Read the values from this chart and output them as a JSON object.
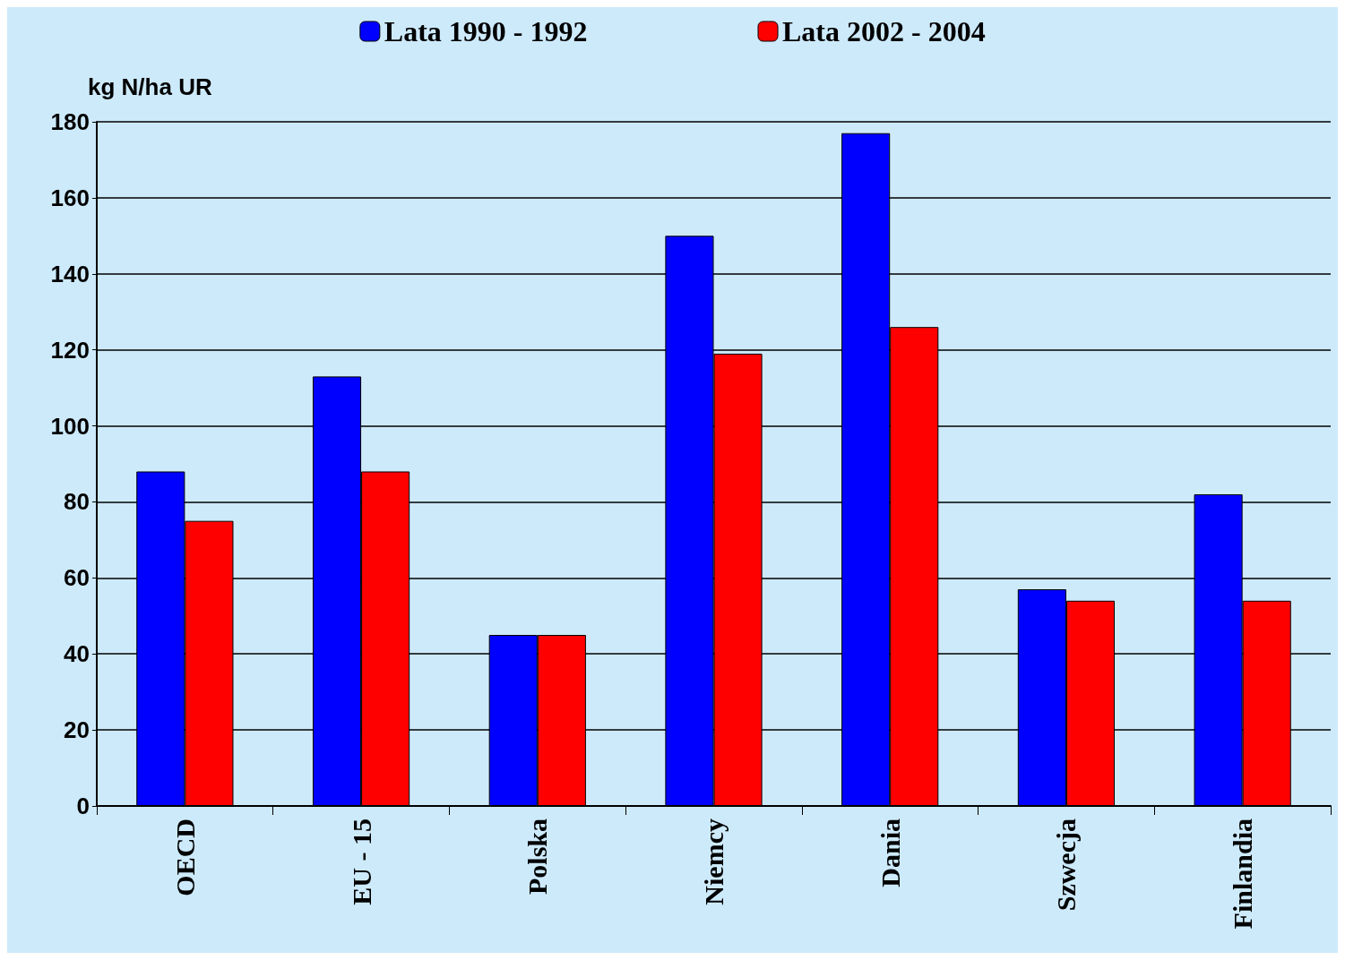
{
  "chart_data": {
    "type": "bar",
    "ylabel": "kg N/ha UR",
    "categories": [
      "OECD",
      "EU - 15",
      "Polska",
      "Niemcy",
      "Dania",
      "Szwecja",
      "Finlandia"
    ],
    "series": [
      {
        "name": "Lata 1990 - 1992",
        "color": "#0000ff",
        "values": [
          88,
          113,
          45,
          150,
          177,
          57,
          82
        ]
      },
      {
        "name": "Lata 2002 - 2004",
        "color": "#ff0000",
        "values": [
          75,
          88,
          45,
          119,
          126,
          54,
          54
        ]
      }
    ],
    "ylim": [
      0,
      180
    ],
    "yticks": [
      0,
      20,
      40,
      60,
      80,
      100,
      120,
      140,
      160,
      180
    ],
    "grid": "y",
    "legend": "top"
  }
}
